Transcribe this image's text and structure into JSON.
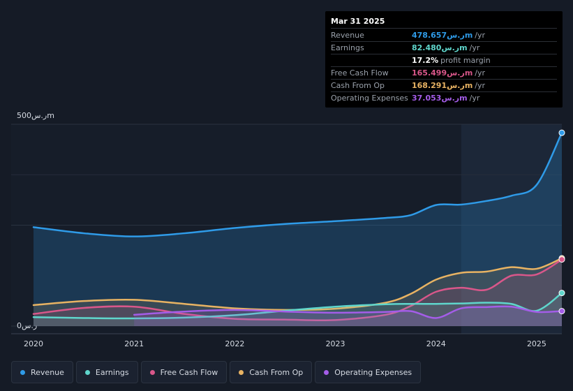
{
  "tooltip": {
    "date": "Mar 31 2025",
    "rows": [
      {
        "label": "Revenue",
        "value": "478.657ر.سm",
        "unit": "/yr",
        "color": "#2f9be8"
      },
      {
        "label": "Earnings",
        "value": "82.480ر.سm",
        "unit": "/yr",
        "color": "#5fd6cc"
      },
      {
        "label": "",
        "value": "17.2%",
        "unit": "profit margin",
        "color": "#ffffff"
      },
      {
        "label": "Free Cash Flow",
        "value": "165.499ر.سm",
        "unit": "/yr",
        "color": "#d9578a"
      },
      {
        "label": "Cash From Op",
        "value": "168.291ر.سm",
        "unit": "/yr",
        "color": "#e8b363"
      },
      {
        "label": "Operating Expenses",
        "value": "37.053ر.سm",
        "unit": "/yr",
        "color": "#a45de8"
      }
    ]
  },
  "y_axis": {
    "top_label": "500ر.سm",
    "bottom_label": "0ر.س"
  },
  "colors": {
    "revenue": "#2f9be8",
    "earnings": "#5fd6cc",
    "fcf": "#d9578a",
    "cfo": "#e8b363",
    "opex": "#a45de8"
  },
  "chart_data": {
    "type": "line",
    "xlabel": "",
    "ylabel": "",
    "ylim": [
      0,
      500
    ],
    "x_ticks": [
      "2020",
      "2021",
      "2022",
      "2023",
      "2024",
      "2025"
    ],
    "x_range": [
      2020.0,
      2025.25
    ],
    "highlight_start": 2024.25,
    "legend_placement": "bottom",
    "series": [
      {
        "name": "Revenue",
        "key": "revenue",
        "x": [
          2020.0,
          2020.5,
          2021.0,
          2021.5,
          2022.0,
          2022.5,
          2023.0,
          2023.5,
          2023.75,
          2024.0,
          2024.25,
          2024.5,
          2024.75,
          2025.0,
          2025.25
        ],
        "y": [
          245,
          230,
          222,
          230,
          243,
          253,
          260,
          268,
          275,
          300,
          301,
          310,
          323,
          350,
          479
        ]
      },
      {
        "name": "Earnings",
        "key": "earnings",
        "x": [
          2020.0,
          2020.5,
          2021.0,
          2021.5,
          2022.0,
          2022.5,
          2023.0,
          2023.5,
          2023.75,
          2024.0,
          2024.25,
          2024.5,
          2024.75,
          2025.0,
          2025.25
        ],
        "y": [
          22,
          20,
          19,
          21,
          27,
          38,
          48,
          54,
          55,
          55,
          56,
          58,
          55,
          38,
          82
        ]
      },
      {
        "name": "Free Cash Flow",
        "key": "fcf",
        "x": [
          2020.0,
          2020.5,
          2021.0,
          2021.5,
          2022.0,
          2022.5,
          2023.0,
          2023.5,
          2023.75,
          2024.0,
          2024.25,
          2024.5,
          2024.75,
          2025.0,
          2025.25
        ],
        "y": [
          30,
          45,
          48,
          30,
          18,
          16,
          15,
          28,
          50,
          85,
          95,
          90,
          125,
          128,
          165
        ]
      },
      {
        "name": "Cash From Op",
        "key": "cfo",
        "x": [
          2020.0,
          2020.5,
          2021.0,
          2021.5,
          2022.0,
          2022.5,
          2023.0,
          2023.5,
          2023.75,
          2024.0,
          2024.25,
          2024.5,
          2024.75,
          2025.0,
          2025.25
        ],
        "y": [
          52,
          62,
          65,
          55,
          44,
          40,
          43,
          58,
          80,
          115,
          132,
          135,
          146,
          142,
          168
        ]
      },
      {
        "name": "Operating Expenses",
        "key": "opex",
        "x": [
          2021.0,
          2021.5,
          2022.0,
          2022.5,
          2023.0,
          2023.5,
          2023.75,
          2024.0,
          2024.25,
          2024.5,
          2024.75,
          2025.0,
          2025.25
        ],
        "y": [
          28,
          36,
          40,
          36,
          33,
          35,
          37,
          20,
          44,
          47,
          48,
          35,
          37
        ]
      }
    ]
  },
  "legend": [
    {
      "label": "Revenue",
      "key": "revenue"
    },
    {
      "label": "Earnings",
      "key": "earnings"
    },
    {
      "label": "Free Cash Flow",
      "key": "fcf"
    },
    {
      "label": "Cash From Op",
      "key": "cfo"
    },
    {
      "label": "Operating Expenses",
      "key": "opex"
    }
  ]
}
